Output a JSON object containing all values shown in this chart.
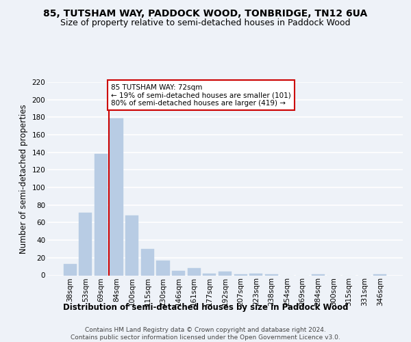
{
  "title": "85, TUTSHAM WAY, PADDOCK WOOD, TONBRIDGE, TN12 6UA",
  "subtitle": "Size of property relative to semi-detached houses in Paddock Wood",
  "xlabel": "Distribution of semi-detached houses by size in Paddock Wood",
  "ylabel": "Number of semi-detached properties",
  "categories": [
    "38sqm",
    "53sqm",
    "69sqm",
    "84sqm",
    "100sqm",
    "115sqm",
    "130sqm",
    "146sqm",
    "161sqm",
    "177sqm",
    "192sqm",
    "207sqm",
    "223sqm",
    "238sqm",
    "254sqm",
    "269sqm",
    "284sqm",
    "300sqm",
    "315sqm",
    "331sqm",
    "346sqm"
  ],
  "values": [
    13,
    71,
    138,
    179,
    68,
    30,
    17,
    5,
    8,
    2,
    4,
    1,
    2,
    1,
    0,
    0,
    1,
    0,
    0,
    0,
    1
  ],
  "bar_color": "#b8cce4",
  "bar_edge_color": "#b8cce4",
  "annotation_text": "85 TUTSHAM WAY: 72sqm\n← 19% of semi-detached houses are smaller (101)\n80% of semi-detached houses are larger (419) →",
  "annotation_box_color": "#ffffff",
  "annotation_box_edge": "#cc0000",
  "vline_color": "#cc0000",
  "vline_x": 2.5,
  "ylim": [
    0,
    220
  ],
  "yticks": [
    0,
    20,
    40,
    60,
    80,
    100,
    120,
    140,
    160,
    180,
    200,
    220
  ],
  "footer": "Contains HM Land Registry data © Crown copyright and database right 2024.\nContains public sector information licensed under the Open Government Licence v3.0.",
  "bg_color": "#eef2f8",
  "grid_color": "#ffffff",
  "title_fontsize": 10,
  "subtitle_fontsize": 9,
  "axis_label_fontsize": 8.5,
  "tick_fontsize": 7.5,
  "footer_fontsize": 6.5
}
